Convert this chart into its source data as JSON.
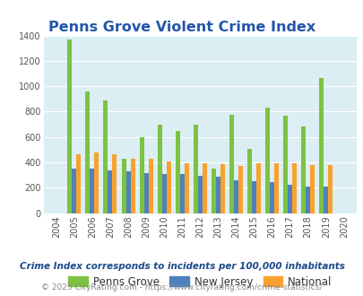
{
  "title": "Penns Grove Violent Crime Index",
  "years": [
    "2004",
    "2005",
    "2006",
    "2007",
    "2008",
    "2009",
    "2010",
    "2011",
    "2012",
    "2013",
    "2014",
    "2015",
    "2016",
    "2017",
    "2018",
    "2019",
    "2020"
  ],
  "penns_grove": [
    0,
    1370,
    960,
    885,
    430,
    600,
    700,
    650,
    695,
    350,
    775,
    505,
    835,
    765,
    680,
    1065,
    0
  ],
  "new_jersey": [
    0,
    350,
    350,
    335,
    330,
    315,
    305,
    305,
    295,
    290,
    260,
    250,
    242,
    225,
    210,
    210,
    0
  ],
  "national": [
    0,
    465,
    475,
    465,
    430,
    430,
    405,
    395,
    390,
    385,
    375,
    390,
    395,
    395,
    380,
    380,
    0
  ],
  "bar_width": 0.25,
  "colors": {
    "penns_grove": "#7dc242",
    "new_jersey": "#4f81bd",
    "national": "#f9a12e"
  },
  "bg_color": "#daeef3",
  "ylim": [
    0,
    1400
  ],
  "yticks": [
    0,
    200,
    400,
    600,
    800,
    1000,
    1200,
    1400
  ],
  "legend_labels": [
    "Penns Grove",
    "New Jersey",
    "National"
  ],
  "subtitle": "Crime Index corresponds to incidents per 100,000 inhabitants",
  "footer": "© 2025 CityRating.com - https://www.cityrating.com/crime-statistics/",
  "title_color": "#2255aa",
  "subtitle_color": "#1a4a8a",
  "footer_color": "#888888",
  "footer_link_color": "#4477cc"
}
